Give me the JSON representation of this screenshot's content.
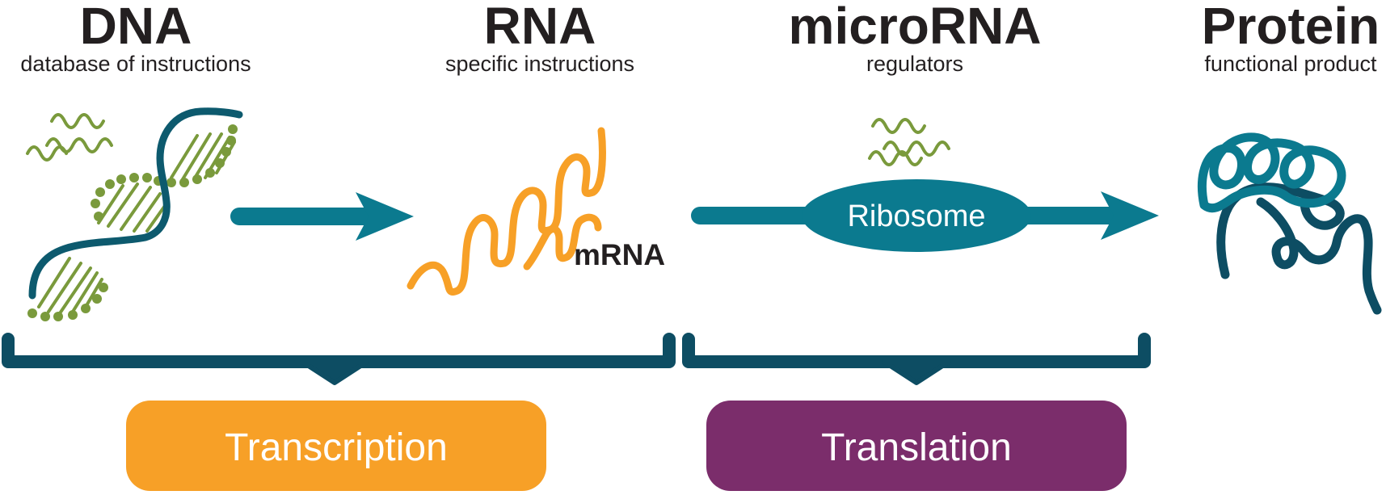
{
  "stages": [
    {
      "title": "DNA",
      "subtitle": "database of instructions"
    },
    {
      "title": "RNA",
      "subtitle": "specific instructions"
    },
    {
      "title": "microRNA",
      "subtitle": "regulators"
    },
    {
      "title": "Protein",
      "subtitle": "functional product"
    }
  ],
  "labels": {
    "mrna": "mRNA",
    "ribosome": "Ribosome"
  },
  "processes": [
    {
      "label": "Transcription",
      "color": "#f7a027"
    },
    {
      "label": "Translation",
      "color": "#7b2d6b"
    }
  ],
  "colors": {
    "dna_strand": "#0d5a6e",
    "base_pairs": "#7a9a3c",
    "rna": "#f7a027",
    "arrow": "#0b7a8f",
    "ribosome": "#0b7a8f",
    "bracket": "#0d4d63",
    "protein_light": "#0b7a8f",
    "protein_dark": "#0d4d63",
    "text": "#231f20"
  }
}
